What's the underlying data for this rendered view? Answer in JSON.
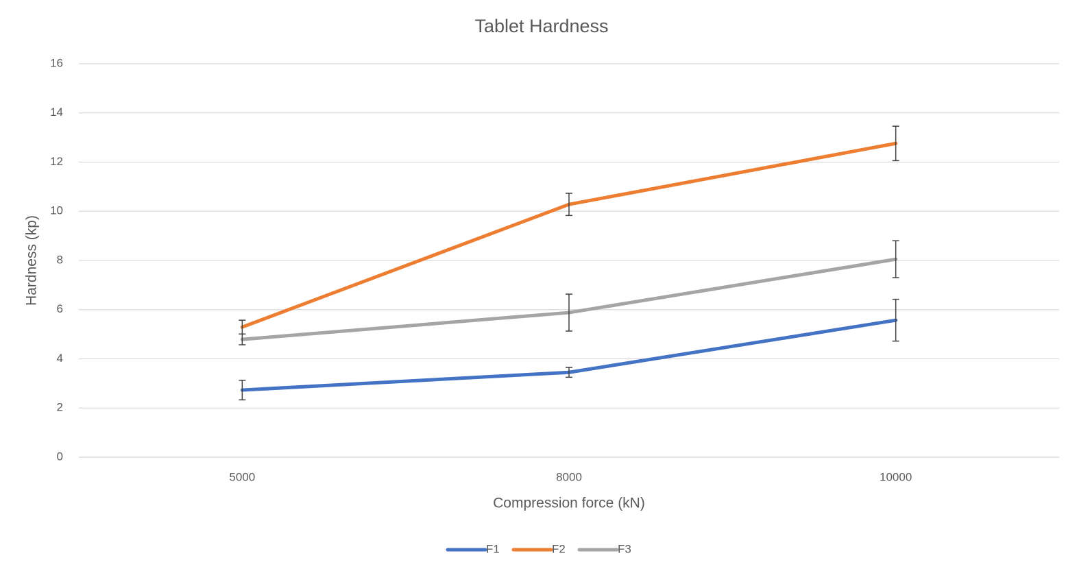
{
  "chart_data": {
    "type": "line",
    "title": "Tablet Hardness",
    "x_label": "Compression force (kN)",
    "y_label": "Hardness (kp)",
    "categories": [
      "5000",
      "8000",
      "10000"
    ],
    "series": [
      {
        "name": "F1",
        "color": "#4472c4",
        "values": [
          2.73,
          3.45,
          5.57
        ],
        "errors": [
          0.4,
          0.2,
          0.85
        ]
      },
      {
        "name": "F2",
        "color": "#ed7d31",
        "values": [
          5.29,
          10.28,
          12.76
        ],
        "errors": [
          0.28,
          0.45,
          0.7
        ]
      },
      {
        "name": "F3",
        "color": "#a5a5a5",
        "values": [
          4.79,
          5.88,
          8.05
        ],
        "errors": [
          0.22,
          0.75,
          0.75
        ]
      }
    ],
    "ylim": [
      0,
      16
    ],
    "yticks": [
      0,
      2,
      4,
      6,
      8,
      10,
      12,
      14,
      16
    ],
    "grid": true,
    "legend": "bottom"
  }
}
